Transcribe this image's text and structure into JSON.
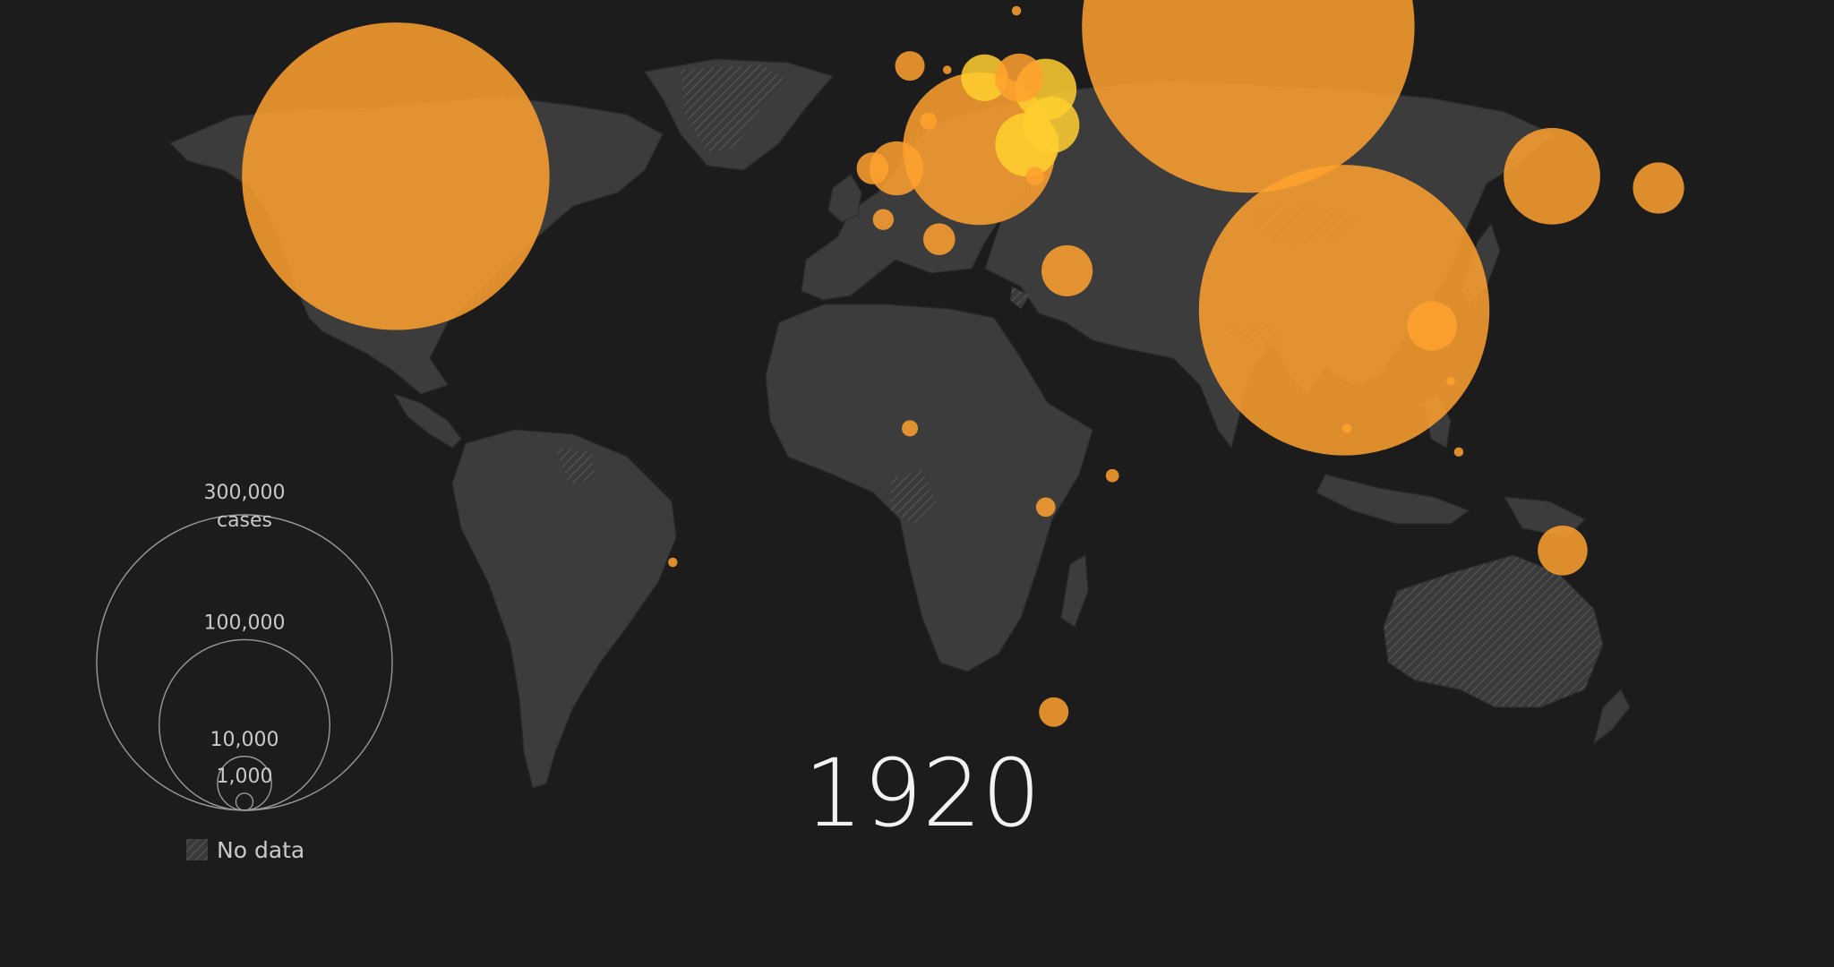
{
  "year": "1920",
  "legend": {
    "unit": "cases",
    "nodata_label": "No data",
    "levels": [
      {
        "label": "300,000",
        "value": 300000
      },
      {
        "label": "100,000",
        "value": 100000
      },
      {
        "label": "10,000",
        "value": 10000
      },
      {
        "label": "1,000",
        "value": 1000
      }
    ]
  },
  "colors": {
    "background": "#1c1c1c",
    "land": "#3c3c3c",
    "bubble": "#ffa12e",
    "bubble_highlight": "#ffcf2e",
    "legend_stroke": "#9a9a9a",
    "text": "#c9c9c9"
  },
  "bubbles": [
    {
      "name": "United States",
      "lon": -98,
      "lat": 39,
      "cases": 325000
    },
    {
      "name": "Russia",
      "lon": 62,
      "lat": 58,
      "cases": 380000
    },
    {
      "name": "India",
      "lon": 80,
      "lat": 22,
      "cases": 290000
    },
    {
      "name": "Italy",
      "lon": 11.5,
      "lat": 42.5,
      "cases": 80000
    },
    {
      "name": "China",
      "lon": 119,
      "lat": 39,
      "cases": 32000
    },
    {
      "name": "Japan",
      "lon": 139,
      "lat": 37.5,
      "cases": 9000
    },
    {
      "name": "Egypt",
      "lon": 28,
      "lat": 27,
      "cases": 9000
    },
    {
      "name": "Spain",
      "lon": -4,
      "lat": 40,
      "cases": 10000
    },
    {
      "name": "Portugal",
      "lon": -8.5,
      "lat": 40,
      "cases": 3500
    },
    {
      "name": "Ukraine",
      "lon": 24,
      "lat": 50,
      "cases": 13000
    },
    {
      "name": "Romania",
      "lon": 25,
      "lat": 45.5,
      "cases": 11000
    },
    {
      "name": "Serbia",
      "lon": 20.5,
      "lat": 43,
      "cases": 14000
    },
    {
      "name": "Germany",
      "lon": 12.5,
      "lat": 51.5,
      "cases": 7500
    },
    {
      "name": "Poland",
      "lon": 19,
      "lat": 51.5,
      "cases": 8000
    },
    {
      "name": "United Kingdom",
      "lon": -1.5,
      "lat": 53,
      "cases": 3000
    },
    {
      "name": "Algeria",
      "lon": 4,
      "lat": 31,
      "cases": 3500
    },
    {
      "name": "Morocco",
      "lon": -6.5,
      "lat": 33.5,
      "cases": 1500
    },
    {
      "name": "Burma",
      "lon": 96.5,
      "lat": 20,
      "cases": 8500
    },
    {
      "name": "Dutch East Indies",
      "lon": 121,
      "lat": -8.5,
      "cases": 8500
    },
    {
      "name": "South Africa",
      "lon": 25.5,
      "lat": -29,
      "cases": 3000
    },
    {
      "name": "Belgian Congo",
      "lon": 24,
      "lat": -3,
      "cases": 1300
    },
    {
      "name": "Kenya",
      "lon": 36.5,
      "lat": 1,
      "cases": 600
    },
    {
      "name": "Gold Coast",
      "lon": -1.5,
      "lat": 7,
      "cases": 900
    },
    {
      "name": "Brazil",
      "lon": -46,
      "lat": -10,
      "cases": 300
    },
    {
      "name": "Sweden",
      "lon": 18.5,
      "lat": 60,
      "cases": 300
    },
    {
      "name": "France",
      "lon": 2,
      "lat": 46,
      "cases": 1000
    },
    {
      "name": "Greece",
      "lon": 22,
      "lat": 39,
      "cases": 1200
    },
    {
      "name": "Malaya",
      "lon": 101.5,
      "lat": 4,
      "cases": 300
    },
    {
      "name": "Siam",
      "lon": 100,
      "lat": 13,
      "cases": 250
    },
    {
      "name": "Ceylon",
      "lon": 80.5,
      "lat": 7,
      "cases": 300
    },
    {
      "name": "Netherlands",
      "lon": 5.5,
      "lat": 52.5,
      "cases": 250
    }
  ]
}
